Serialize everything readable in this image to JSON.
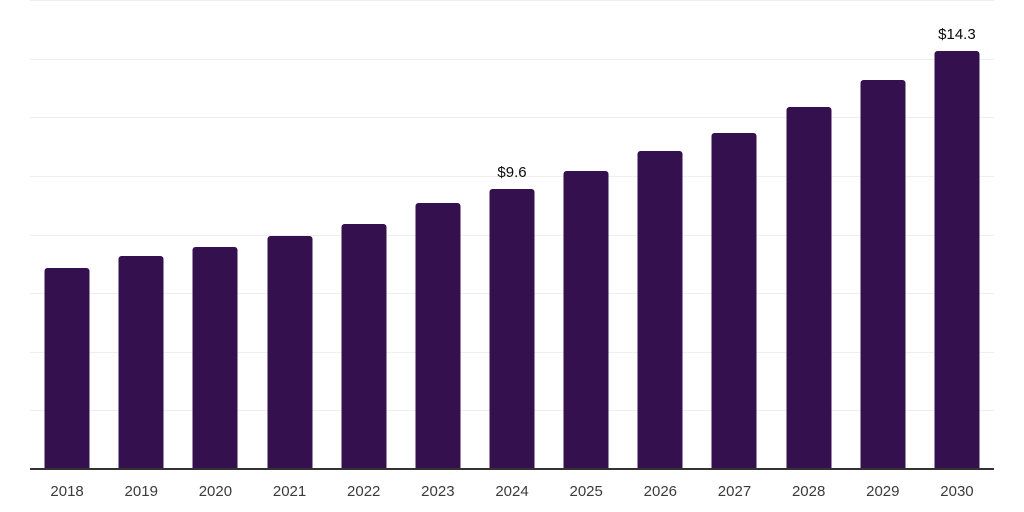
{
  "chart_data": {
    "type": "bar",
    "title": "",
    "xlabel": "",
    "ylabel": "",
    "categories": [
      "2018",
      "2019",
      "2020",
      "2021",
      "2022",
      "2023",
      "2024",
      "2025",
      "2026",
      "2027",
      "2028",
      "2029",
      "2030"
    ],
    "values": [
      6.9,
      7.3,
      7.6,
      8.0,
      8.4,
      9.1,
      9.6,
      10.2,
      10.9,
      11.5,
      12.4,
      13.3,
      14.3
    ],
    "data_labels": [
      null,
      null,
      null,
      null,
      null,
      null,
      "$9.6",
      null,
      null,
      null,
      null,
      null,
      "$14.3"
    ],
    "ylim": [
      0,
      16
    ],
    "gridline_step": 2,
    "grid": "horizontal-only",
    "legend": "none",
    "y_axis_tick_labels": "none",
    "colors": {
      "bar": "#35104e",
      "gridline": "#efefef",
      "axis_line": "#333333",
      "tick_label": "#3b3b3b",
      "data_label": "#0a0a0a",
      "background": "#ffffff"
    }
  }
}
